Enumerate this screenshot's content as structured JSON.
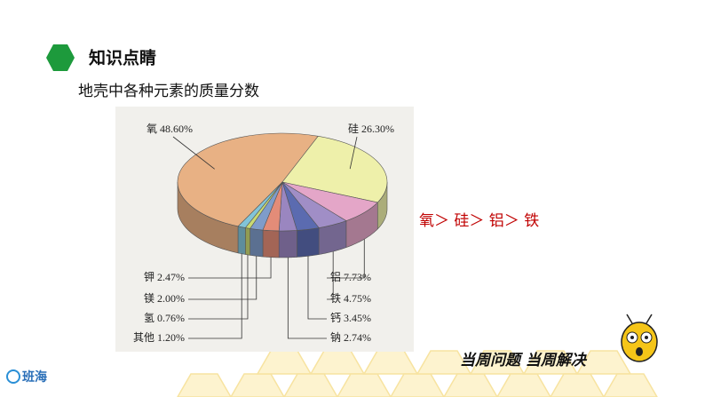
{
  "header": {
    "title": "知识点睛",
    "subtitle": "地壳中各种元素的质量分数"
  },
  "chart_data": {
    "type": "pie",
    "categories": [
      "氧",
      "硅",
      "铝",
      "铁",
      "钙",
      "钠",
      "钾",
      "镁",
      "氢",
      "其他"
    ],
    "values": [
      48.6,
      26.3,
      7.73,
      4.75,
      3.45,
      2.74,
      2.47,
      2.0,
      0.76,
      1.2
    ],
    "value_labels": [
      "48.60%",
      "26.30%",
      "7.73%",
      "4.75%",
      "3.45%",
      "2.74%",
      "2.47%",
      "2.00%",
      "0.76%",
      "1.20%"
    ],
    "colors": [
      "#e8b184",
      "#eef0aa",
      "#e4a6c8",
      "#a08ec6",
      "#5b6bb0",
      "#9a86c0",
      "#e38c78",
      "#7f9cca",
      "#c9d972",
      "#82c4d8"
    ]
  },
  "conclusion": "氧＞ 硅＞ 铝＞ 铁",
  "logo": "班海",
  "slogan": "当周问题 当周解决"
}
